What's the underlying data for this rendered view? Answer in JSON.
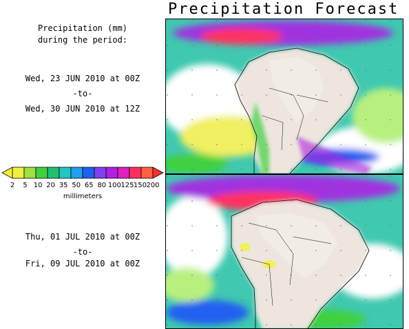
{
  "title": "Precipitation Forecast",
  "caption": {
    "line1": "Precipitation (mm)",
    "line2": "during the period:"
  },
  "period1": {
    "start": "Wed, 23 JUN 2010 at 00Z",
    "sep": "-to-",
    "end": "Wed, 30 JUN 2010 at 12Z"
  },
  "period2": {
    "start": "Thu, 01 JUL 2010 at 00Z",
    "sep": "-to-",
    "end": "Fri, 09 JUL 2010 at 00Z"
  },
  "legend": {
    "units": "millimeters",
    "ticks": [
      "2",
      "5",
      "10",
      "20",
      "35",
      "50",
      "65",
      "80",
      "100",
      "125",
      "150",
      "200"
    ],
    "colors": [
      "#f0f040",
      "#a0e040",
      "#40d040",
      "#20c070",
      "#20c8c0",
      "#20a0f0",
      "#2060f0",
      "#8040f0",
      "#b020e0",
      "#e020c0",
      "#ff3060",
      "#ff6040"
    ],
    "low_color": "#f0f040",
    "high_color": "#ff3030"
  },
  "map": {
    "land_color": "#eee6de",
    "ocean_low_color": "#ffffff"
  }
}
